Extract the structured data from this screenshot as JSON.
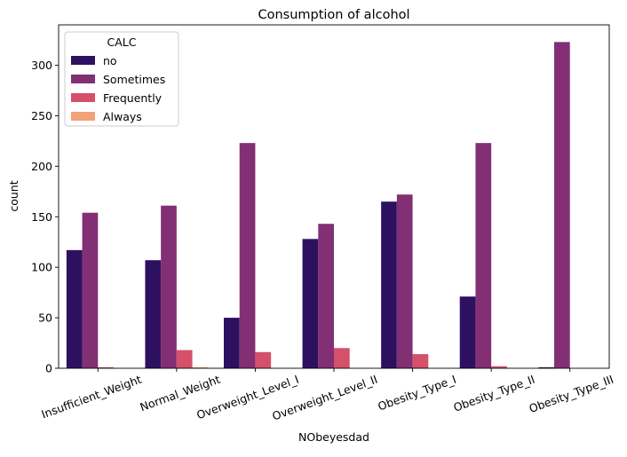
{
  "chart_data": {
    "type": "bar",
    "title": "Consumption of alcohol",
    "xlabel": "NObeyesdad",
    "ylabel": "count",
    "ylim": [
      0,
      340
    ],
    "yticks": [
      0,
      50,
      100,
      150,
      200,
      250,
      300
    ],
    "grid": false,
    "legend": {
      "title": "CALC",
      "placement": "upper-left"
    },
    "categories": [
      "Insufficient_Weight",
      "Normal_Weight",
      "Overweight_Level_I",
      "Overweight_Level_II",
      "Obesity_Type_I",
      "Obesity_Type_II",
      "Obesity_Type_III"
    ],
    "series": [
      {
        "name": "no",
        "color": "#2d1160",
        "values": [
          117,
          107,
          50,
          128,
          165,
          71,
          1
        ]
      },
      {
        "name": "Sometimes",
        "color": "#832f74",
        "values": [
          154,
          161,
          223,
          143,
          172,
          223,
          323
        ]
      },
      {
        "name": "Frequently",
        "color": "#d5506a",
        "values": [
          1,
          18,
          16,
          20,
          14,
          2,
          0
        ]
      },
      {
        "name": "Always",
        "color": "#f3a27b",
        "values": [
          0,
          1,
          0,
          0,
          0,
          0,
          0
        ]
      }
    ]
  }
}
